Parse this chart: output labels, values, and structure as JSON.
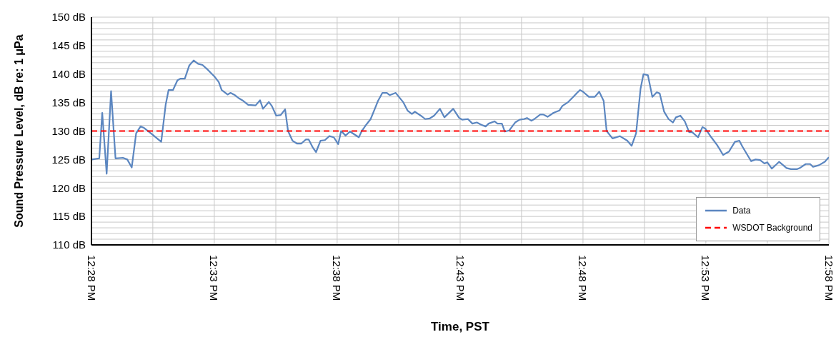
{
  "chart_data": {
    "type": "line",
    "xlabel": "Time, PST",
    "ylabel": "Sound Pressure Level, dB re: 1 μPa",
    "xlim": [
      12.4667,
      12.9667
    ],
    "xticks": [
      {
        "value": 12.4667,
        "label": "12:28 PM"
      },
      {
        "value": 12.5083,
        "label": null
      },
      {
        "value": 12.55,
        "label": "12:33 PM"
      },
      {
        "value": 12.5917,
        "label": null
      },
      {
        "value": 12.6333,
        "label": "12:38 PM"
      },
      {
        "value": 12.675,
        "label": null
      },
      {
        "value": 12.7167,
        "label": "12:43 PM"
      },
      {
        "value": 12.7583,
        "label": null
      },
      {
        "value": 12.8,
        "label": "12:48 PM"
      },
      {
        "value": 12.8417,
        "label": null
      },
      {
        "value": 12.8833,
        "label": "12:53 PM"
      },
      {
        "value": 12.925,
        "label": null
      },
      {
        "value": 12.9667,
        "label": "12:58 PM"
      }
    ],
    "ylim": [
      110,
      150
    ],
    "yticks": [
      {
        "value": 110,
        "label": "110 dB"
      },
      {
        "value": 111,
        "label": null
      },
      {
        "value": 112,
        "label": null
      },
      {
        "value": 113,
        "label": null
      },
      {
        "value": 114,
        "label": null
      },
      {
        "value": 115,
        "label": "115 dB"
      },
      {
        "value": 116,
        "label": null
      },
      {
        "value": 117,
        "label": null
      },
      {
        "value": 118,
        "label": null
      },
      {
        "value": 119,
        "label": null
      },
      {
        "value": 120,
        "label": "120 dB"
      },
      {
        "value": 121,
        "label": null
      },
      {
        "value": 122,
        "label": null
      },
      {
        "value": 123,
        "label": null
      },
      {
        "value": 124,
        "label": null
      },
      {
        "value": 125,
        "label": "125 dB"
      },
      {
        "value": 126,
        "label": null
      },
      {
        "value": 127,
        "label": null
      },
      {
        "value": 128,
        "label": null
      },
      {
        "value": 129,
        "label": null
      },
      {
        "value": 130,
        "label": "130 dB"
      },
      {
        "value": 131,
        "label": null
      },
      {
        "value": 132,
        "label": null
      },
      {
        "value": 133,
        "label": null
      },
      {
        "value": 134,
        "label": null
      },
      {
        "value": 135,
        "label": "135 dB"
      },
      {
        "value": 136,
        "label": null
      },
      {
        "value": 137,
        "label": null
      },
      {
        "value": 138,
        "label": null
      },
      {
        "value": 139,
        "label": null
      },
      {
        "value": 140,
        "label": "140 dB"
      },
      {
        "value": 141,
        "label": null
      },
      {
        "value": 142,
        "label": null
      },
      {
        "value": 143,
        "label": null
      },
      {
        "value": 144,
        "label": null
      },
      {
        "value": 145,
        "label": "145 dB"
      },
      {
        "value": 146,
        "label": null
      },
      {
        "value": 147,
        "label": null
      },
      {
        "value": 148,
        "label": null
      },
      {
        "value": 149,
        "label": null
      },
      {
        "value": 150,
        "label": "150 dB"
      }
    ],
    "grid": true,
    "legend": "bottom right",
    "marker": "none",
    "series": [
      {
        "name": "Data",
        "color": "#5b86c0",
        "line_style": "solid",
        "x": [
          12.467,
          12.472,
          12.474,
          12.477,
          12.48,
          12.483,
          12.488,
          12.491,
          12.494,
          12.497,
          12.5,
          12.502,
          12.508,
          12.514,
          12.517,
          12.519,
          12.522,
          12.525,
          12.527,
          12.53,
          12.533,
          12.536,
          12.539,
          12.542,
          12.545,
          12.55,
          12.553,
          12.555,
          12.559,
          12.561,
          12.564,
          12.567,
          12.569,
          12.573,
          12.578,
          12.581,
          12.583,
          12.587,
          12.589,
          12.592,
          12.595,
          12.598,
          12.6,
          12.603,
          12.606,
          12.609,
          12.612,
          12.614,
          12.617,
          12.619,
          12.622,
          12.625,
          12.628,
          12.631,
          12.634,
          12.636,
          12.639,
          12.642,
          12.648,
          12.65,
          12.653,
          12.656,
          12.659,
          12.661,
          12.664,
          12.667,
          12.669,
          12.673,
          12.678,
          12.681,
          12.684,
          12.686,
          12.69,
          12.693,
          12.696,
          12.699,
          12.703,
          12.706,
          12.708,
          12.712,
          12.716,
          12.718,
          12.722,
          12.725,
          12.728,
          12.731,
          12.734,
          12.736,
          12.74,
          12.742,
          12.745,
          12.747,
          12.75,
          12.754,
          12.757,
          12.76,
          12.762,
          12.765,
          12.767,
          12.771,
          12.773,
          12.776,
          12.78,
          12.784,
          12.786,
          12.79,
          12.793,
          12.796,
          12.798,
          12.8,
          12.804,
          12.808,
          12.811,
          12.814,
          12.816,
          12.82,
          12.825,
          12.83,
          12.833,
          12.836,
          12.839,
          12.841,
          12.844,
          12.847,
          12.85,
          12.852,
          12.855,
          12.858,
          12.861,
          12.863,
          12.866,
          12.869,
          12.872,
          12.874,
          12.878,
          12.881,
          12.883,
          12.887,
          12.891,
          12.895,
          12.899,
          12.903,
          12.906,
          12.908,
          12.914,
          12.917,
          12.92,
          12.923,
          12.925,
          12.928,
          12.931,
          12.933,
          12.938,
          12.941,
          12.945,
          12.947,
          12.951,
          12.954,
          12.956,
          12.96,
          12.964,
          12.9667
        ],
        "values": [
          125,
          125.2,
          133.2,
          122.5,
          137,
          125.2,
          125.3,
          125,
          123.6,
          129.6,
          130.8,
          130.6,
          129.4,
          128.1,
          134.6,
          137.2,
          137.2,
          138.9,
          139.2,
          139.2,
          141.5,
          142.4,
          141.8,
          141.6,
          140.9,
          139.6,
          138.6,
          137.2,
          136.4,
          136.7,
          136.3,
          135.7,
          135.4,
          134.6,
          134.5,
          135.4,
          133.9,
          135.1,
          134.4,
          132.7,
          132.8,
          133.8,
          130,
          128.3,
          127.8,
          127.8,
          128.5,
          128.5,
          127,
          126.3,
          128.3,
          128.4,
          129.1,
          128.9,
          127.7,
          130,
          129.2,
          129.9,
          128.9,
          130,
          131.1,
          132.1,
          134,
          135.3,
          136.7,
          136.7,
          136.3,
          136.7,
          135.1,
          133.6,
          133,
          133.4,
          132.7,
          132.1,
          132.2,
          132.7,
          133.9,
          132.4,
          132.9,
          133.9,
          132.3,
          132,
          132.1,
          131.3,
          131.5,
          131.1,
          130.8,
          131.3,
          131.7,
          131.3,
          131.3,
          129.9,
          130.1,
          131.5,
          132,
          132.1,
          132.3,
          131.8,
          132.1,
          132.9,
          132.9,
          132.5,
          133.2,
          133.6,
          134.4,
          135.1,
          135.9,
          136.7,
          137.2,
          136.9,
          136,
          136,
          136.9,
          135.3,
          130,
          128.7,
          129.1,
          128.3,
          127.4,
          129.6,
          137.4,
          140,
          139.8,
          136,
          136.8,
          136.6,
          133.4,
          132.1,
          131.5,
          132.4,
          132.7,
          131.7,
          129.8,
          129.8,
          128.9,
          130.7,
          130.4,
          128.9,
          127.5,
          125.8,
          126.4,
          128.1,
          128.3,
          127.3,
          124.7,
          125,
          124.9,
          124.3,
          124.5,
          123.4,
          124.1,
          124.6,
          123.5,
          123.3,
          123.3,
          123.5,
          124.2,
          124.2,
          123.7,
          124,
          124.6,
          125.4
        ]
      },
      {
        "name": "WSDOT Background",
        "color": "#ff0000",
        "line_style": "dashed",
        "x": [
          12.4667,
          12.9667
        ],
        "values": [
          130,
          130
        ]
      }
    ]
  }
}
